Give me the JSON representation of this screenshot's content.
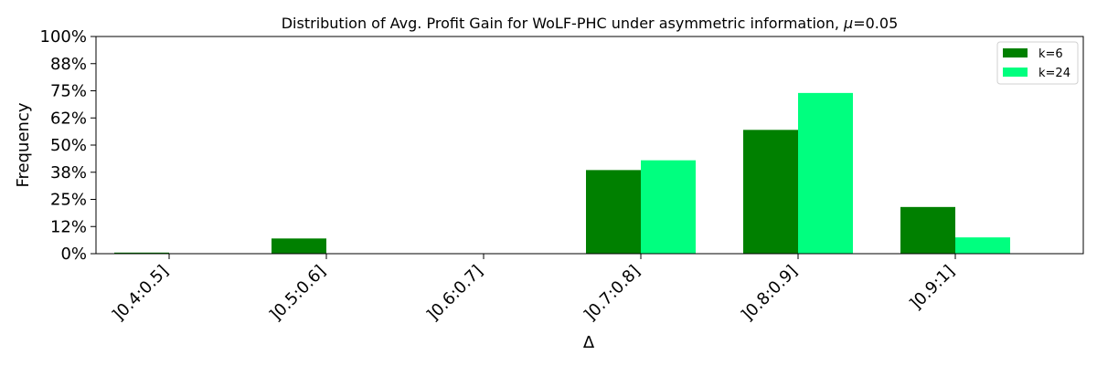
{
  "chart_data": {
    "type": "bar",
    "title": "Distribution of Avg. Profit Gain for WoLF-PHC under asymmetric information, μ=0.05",
    "title_prefix": "Distribution of Avg. Profit Gain for WoLF-PHC under asymmetric information, ",
    "title_mu": "μ",
    "title_suffix": "=0.05",
    "xlabel": "Δ",
    "ylabel": "Frequency",
    "categories": [
      "]0.4:0.5]",
      "]0.5:0.6]",
      "]0.6:0.7]",
      "]0.7:0.8]",
      "]0.8:0.9]",
      "]0.9:1]"
    ],
    "series": [
      {
        "name": "k=6",
        "color": "#008000",
        "values": [
          0.005,
          0.07,
          0.0,
          0.385,
          0.57,
          0.215
        ]
      },
      {
        "name": "k=24",
        "color": "#00ff7f",
        "values": [
          0.0,
          0.0,
          0.0,
          0.43,
          0.74,
          0.075
        ]
      }
    ],
    "ylim": [
      0,
      1
    ],
    "yticks": [
      0,
      0.125,
      0.25,
      0.375,
      0.5,
      0.625,
      0.75,
      0.875,
      1.0
    ],
    "ytick_labels": [
      "0%",
      "12%",
      "25%",
      "38%",
      "50%",
      "62%",
      "75%",
      "88%",
      "100%"
    ],
    "grid": false,
    "legend": "top-right"
  }
}
